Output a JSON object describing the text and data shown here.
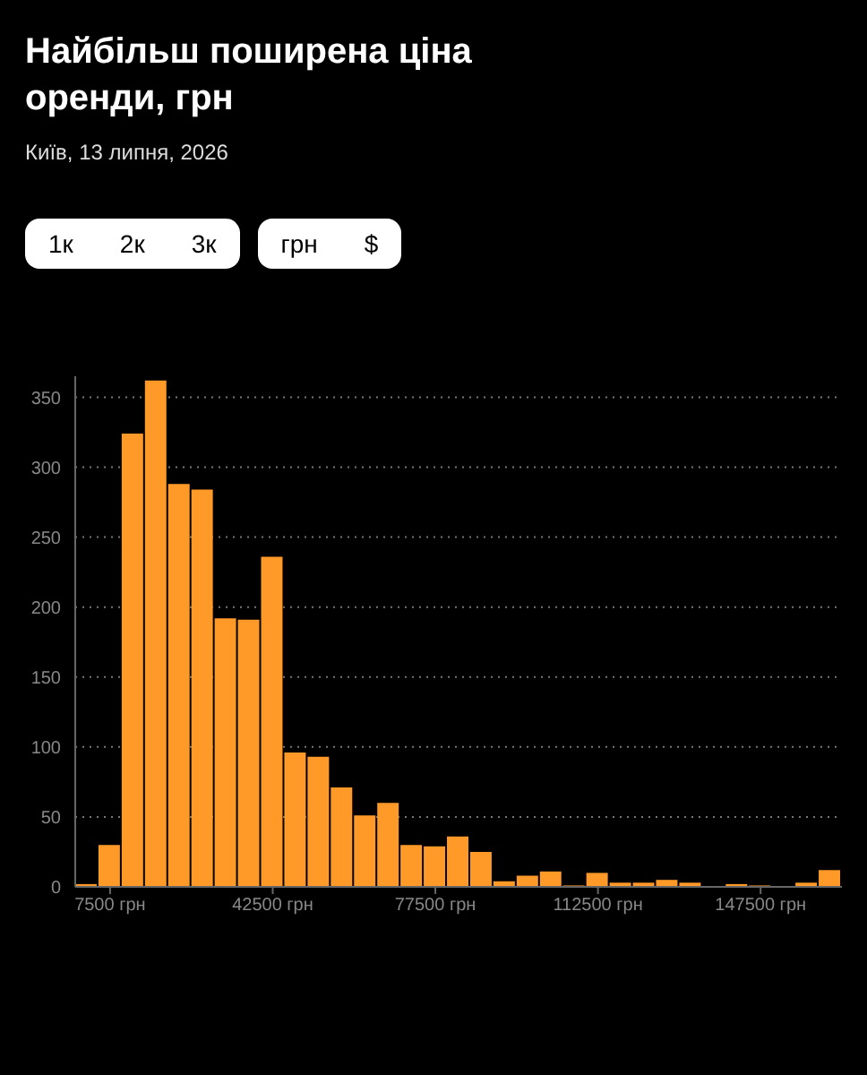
{
  "chart_data": {
    "type": "histogram",
    "title": "Найбільш поширена ціна оренди, грн",
    "subtitle": "Київ, 13 липня, 2026",
    "annotations": [
      "1к",
      "2к",
      "3к",
      "грн",
      "$"
    ],
    "bins": [
      0,
      5000,
      10000,
      15000,
      20000,
      25000,
      30000,
      35000,
      40000,
      45000,
      50000,
      55000,
      60000,
      65000,
      70000,
      75000,
      80000,
      85000,
      90000,
      95000,
      100000,
      105000,
      110000,
      115000,
      120000,
      125000,
      130000,
      135000,
      140000,
      145000,
      150000,
      155000,
      160000,
      165000
    ],
    "values": [
      2,
      30,
      324,
      362,
      288,
      284,
      192,
      191,
      236,
      96,
      93,
      71,
      51,
      60,
      30,
      29,
      36,
      25,
      4,
      8,
      11,
      1,
      10,
      3,
      3,
      5,
      3,
      0,
      2,
      1,
      0,
      3,
      12
    ],
    "color": "#ff9a28",
    "xlim": [
      0,
      165000
    ],
    "xticks": [
      {
        "value": 7500,
        "label": "7500 грн"
      },
      {
        "value": 42500,
        "label": "42500 грн"
      },
      {
        "value": 77500,
        "label": "77500 грн"
      },
      {
        "value": 112500,
        "label": "112500 грн"
      },
      {
        "value": 147500,
        "label": "147500 грн"
      }
    ],
    "ylim": [
      0,
      365
    ],
    "yticks": [
      0,
      50,
      100,
      150,
      200,
      250,
      300,
      350
    ],
    "grid": "y"
  }
}
